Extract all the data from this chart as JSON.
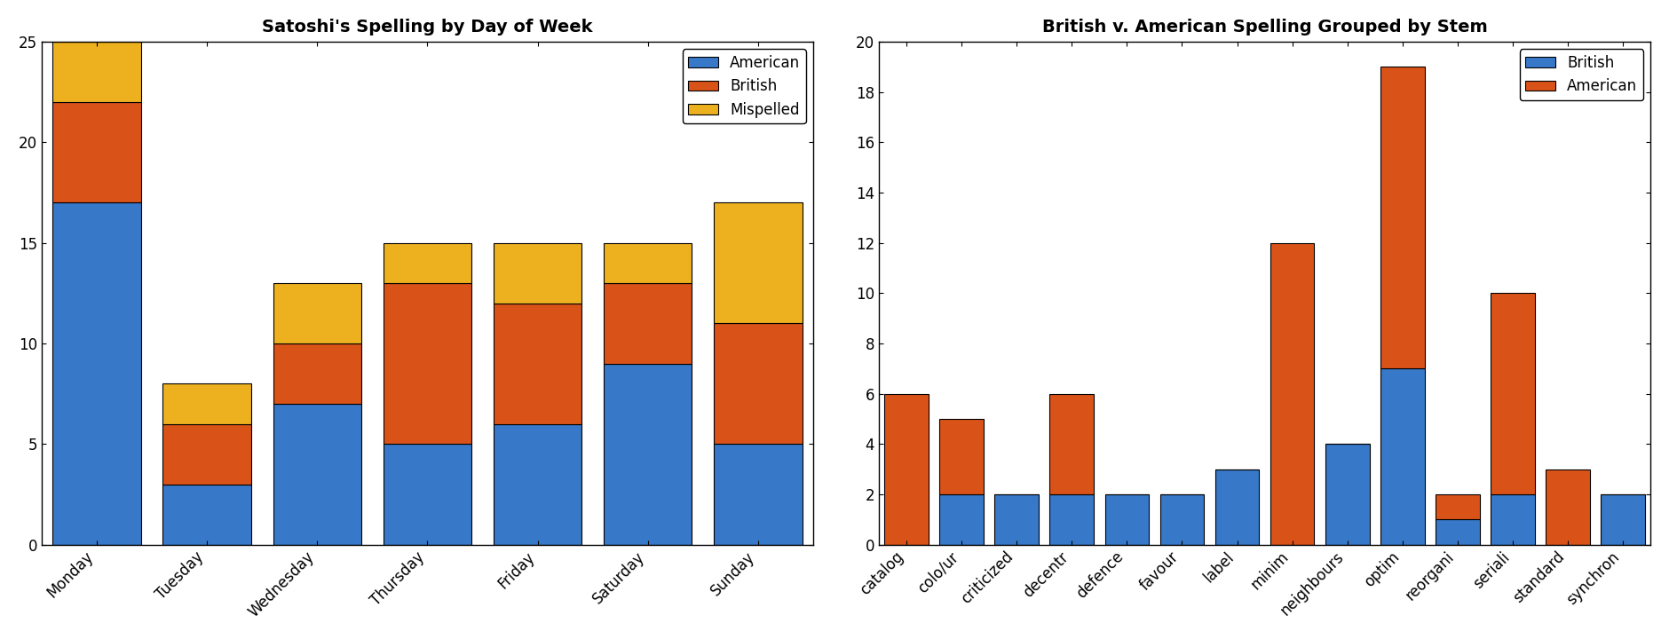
{
  "left_title": "Satoshi's Spelling by Day of Week",
  "left_days": [
    "Monday",
    "Tuesday",
    "Wednesday",
    "Thursday",
    "Friday",
    "Saturday",
    "Sunday"
  ],
  "left_american": [
    17,
    3,
    7,
    5,
    6,
    9,
    5
  ],
  "left_british": [
    5,
    3,
    3,
    8,
    6,
    4,
    6
  ],
  "left_mispelled": [
    3,
    2,
    3,
    2,
    3,
    2,
    6
  ],
  "left_ylim": [
    0,
    25
  ],
  "left_yticks": [
    0,
    5,
    10,
    15,
    20,
    25
  ],
  "color_american": "#3878c8",
  "color_british": "#d95319",
  "color_mispelled": "#edb120",
  "right_title": "British v. American Spelling Grouped by Stem",
  "right_stems": [
    "catalog",
    "colo/ur",
    "criticized",
    "decentr",
    "defence",
    "favour",
    "label",
    "minim",
    "neighbours",
    "optim",
    "reorgani",
    "seriali",
    "standard",
    "synchron"
  ],
  "right_british": [
    0,
    2,
    2,
    2,
    2,
    2,
    3,
    0,
    4,
    7,
    1,
    2,
    0,
    2
  ],
  "right_american": [
    6,
    3,
    0,
    4,
    0,
    0,
    0,
    12,
    0,
    12,
    1,
    8,
    3,
    0
  ],
  "right_ylim": [
    0,
    20
  ],
  "right_yticks": [
    0,
    2,
    4,
    6,
    8,
    10,
    12,
    14,
    16,
    18,
    20
  ],
  "bg_color": "#ffffff",
  "left_legend_labels": [
    "American",
    "British",
    "Mispelled"
  ],
  "right_legend_labels": [
    "British",
    "American"
  ]
}
